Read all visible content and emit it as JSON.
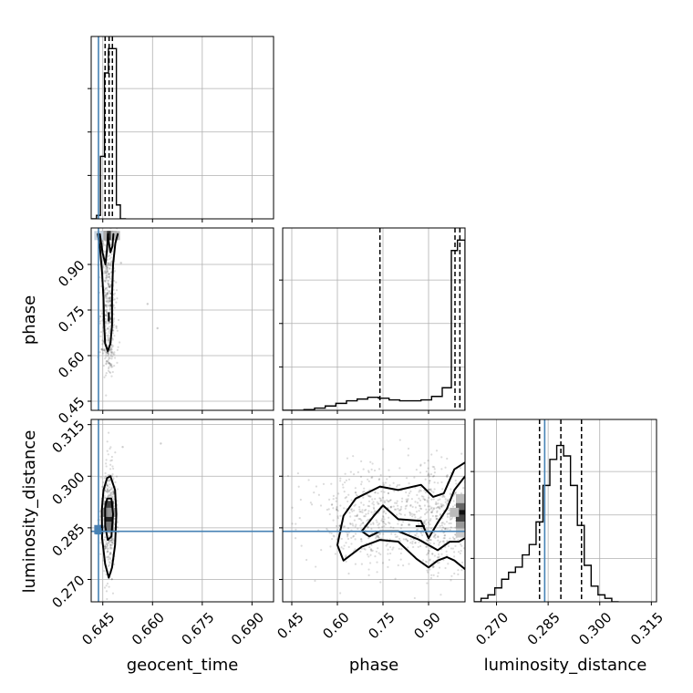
{
  "chart_data": {
    "type": "corner",
    "parameters": [
      "geocent_time",
      "phase",
      "luminosity_distance"
    ],
    "truth": {
      "geocent_time": 0.6437,
      "phase": null,
      "luminosity_distance": 0.284
    },
    "colors": {
      "truth": "#4682b4",
      "hist": "#000000",
      "grid": "#b0b0b0"
    },
    "axes": {
      "geocent_time": {
        "range": [
          0.6415,
          0.6965
        ],
        "ticks": [
          0.645,
          0.66,
          0.675,
          0.69
        ],
        "tick_labels": [
          "0.645",
          "0.660",
          "0.675",
          "0.690"
        ],
        "label": "geocent_time"
      },
      "phase": {
        "range": [
          0.42,
          1.02
        ],
        "ticks": [
          0.45,
          0.6,
          0.75,
          0.9
        ],
        "tick_labels": [
          "0.45",
          "0.60",
          "0.75",
          "0.90"
        ],
        "label": "phase"
      },
      "luminosity_distance": {
        "range": [
          0.2635,
          0.3165
        ],
        "ticks": [
          0.27,
          0.285,
          0.3,
          0.315
        ],
        "tick_labels": [
          "0.270",
          "0.285",
          "0.300",
          "0.315"
        ],
        "label": "luminosity_distance"
      }
    },
    "histograms": {
      "geocent_time": {
        "bin_edges": [
          0.6415,
          0.6431,
          0.6443,
          0.6455,
          0.6467,
          0.6479,
          0.6491,
          0.6503,
          0.652
        ],
        "counts": [
          0.0,
          0.02,
          0.36,
          0.84,
          0.98,
          0.98,
          0.08,
          0.0
        ],
        "quantiles": [
          0.6457,
          0.6469,
          0.6479
        ]
      },
      "phase": {
        "bin_edges": [
          0.42,
          0.455,
          0.49,
          0.525,
          0.56,
          0.595,
          0.63,
          0.665,
          0.7,
          0.735,
          0.77,
          0.805,
          0.84,
          0.875,
          0.91,
          0.945,
          0.975,
          0.995,
          1.02
        ],
        "counts": [
          0.0,
          0.0,
          0.004,
          0.013,
          0.025,
          0.04,
          0.055,
          0.065,
          0.075,
          0.07,
          0.06,
          0.055,
          0.055,
          0.06,
          0.08,
          0.13,
          0.92,
          0.98
        ],
        "quantiles": [
          0.74,
          0.987,
          1.003
        ]
      },
      "luminosity_distance": {
        "bin_edges": [
          0.2635,
          0.2655,
          0.2675,
          0.2695,
          0.2715,
          0.2735,
          0.2755,
          0.2775,
          0.2795,
          0.2815,
          0.2835,
          0.2855,
          0.2875,
          0.2895,
          0.2915,
          0.2935,
          0.2955,
          0.2975,
          0.2995,
          0.3015,
          0.3035,
          0.3055
        ],
        "counts": [
          0.0,
          0.02,
          0.04,
          0.08,
          0.13,
          0.17,
          0.2,
          0.27,
          0.33,
          0.46,
          0.67,
          0.82,
          0.9,
          0.84,
          0.67,
          0.44,
          0.21,
          0.09,
          0.04,
          0.02,
          0.0
        ],
        "quantiles": [
          0.2825,
          0.2887,
          0.2947
        ]
      }
    },
    "contours": {
      "phase_vs_geocent_time": [
        [
          [
            0.6435,
            1.0
          ],
          [
            0.6442,
            0.95
          ],
          [
            0.6448,
            0.87
          ],
          [
            0.6452,
            0.79
          ],
          [
            0.6454,
            0.7
          ],
          [
            0.6457,
            0.64
          ],
          [
            0.6465,
            0.615
          ],
          [
            0.6473,
            0.64
          ],
          [
            0.6478,
            0.7
          ],
          [
            0.6478,
            0.8
          ],
          [
            0.6481,
            0.9
          ],
          [
            0.6488,
            0.97
          ],
          [
            0.6495,
            1.0
          ]
        ],
        [
          [
            0.6441,
            1.0
          ],
          [
            0.6449,
            0.94
          ],
          [
            0.6458,
            0.9
          ],
          [
            0.6462,
            0.94
          ],
          [
            0.6466,
            1.0
          ]
        ],
        [
          [
            0.6466,
            0.99
          ],
          [
            0.6473,
            0.94
          ],
          [
            0.6479,
            0.96
          ],
          [
            0.6482,
            1.0
          ]
        ],
        [
          [
            0.6468,
            0.715
          ],
          [
            0.6468,
            0.74
          ]
        ]
      ],
      "luminosity_distance_vs_geocent_time": [
        [
          [
            0.6463,
            0.2995
          ],
          [
            0.6473,
            0.3
          ],
          [
            0.6487,
            0.296
          ],
          [
            0.6491,
            0.289
          ],
          [
            0.6487,
            0.28
          ],
          [
            0.6478,
            0.2735
          ],
          [
            0.6468,
            0.2705
          ],
          [
            0.6457,
            0.2745
          ],
          [
            0.6448,
            0.282
          ],
          [
            0.6447,
            0.29
          ],
          [
            0.6452,
            0.296
          ],
          [
            0.6463,
            0.2995
          ]
        ],
        [
          [
            0.6463,
            0.2935
          ],
          [
            0.6476,
            0.2935
          ],
          [
            0.6481,
            0.289
          ],
          [
            0.6476,
            0.2825
          ],
          [
            0.6465,
            0.2815
          ],
          [
            0.6457,
            0.2855
          ],
          [
            0.6457,
            0.291
          ],
          [
            0.6463,
            0.2935
          ]
        ]
      ],
      "luminosity_distance_vs_phase": [
        [
          [
            1.02,
            0.304
          ],
          [
            0.985,
            0.302
          ],
          [
            0.95,
            0.295
          ],
          [
            0.915,
            0.294
          ],
          [
            0.875,
            0.2975
          ],
          [
            0.8,
            0.296
          ],
          [
            0.74,
            0.297
          ],
          [
            0.66,
            0.2935
          ],
          [
            0.62,
            0.2885
          ],
          [
            0.6,
            0.28
          ],
          [
            0.62,
            0.2755
          ],
          [
            0.68,
            0.2795
          ],
          [
            0.74,
            0.2815
          ],
          [
            0.8,
            0.281
          ],
          [
            0.86,
            0.276
          ],
          [
            0.9,
            0.2735
          ],
          [
            0.93,
            0.2755
          ],
          [
            0.96,
            0.2765
          ],
          [
            0.985,
            0.2755
          ],
          [
            1.02,
            0.273
          ]
        ],
        [
          [
            1.02,
            0.3
          ],
          [
            0.985,
            0.296
          ],
          [
            0.96,
            0.2905
          ],
          [
            0.93,
            0.2865
          ],
          [
            0.9,
            0.282
          ],
          [
            0.875,
            0.287
          ],
          [
            0.8,
            0.2875
          ],
          [
            0.75,
            0.2915
          ],
          [
            0.72,
            0.2885
          ],
          [
            0.68,
            0.284
          ],
          [
            0.705,
            0.2825
          ],
          [
            0.74,
            0.284
          ],
          [
            0.8,
            0.284
          ],
          [
            0.87,
            0.2815
          ],
          [
            0.93,
            0.2785
          ],
          [
            0.97,
            0.281
          ],
          [
            1.0,
            0.281
          ],
          [
            1.02,
            0.282
          ]
        ],
        [
          [
            0.86,
            0.2855
          ],
          [
            0.885,
            0.2855
          ]
        ]
      ]
    },
    "density_cells": {
      "phase_vs_geocent_time": [
        [
          0.6468,
          0.995,
          "#000000"
        ],
        [
          0.6458,
          0.995,
          "#555555"
        ],
        [
          0.6478,
          0.995,
          "#333333"
        ],
        [
          0.6448,
          0.995,
          "#aaaaaa"
        ],
        [
          0.6488,
          0.995,
          "#bbbbbb"
        ],
        [
          0.6438,
          0.995,
          "#c8d4e0"
        ]
      ],
      "luminosity_distance_vs_geocent_time": [
        [
          0.6469,
          0.2895,
          "#111111"
        ],
        [
          0.6469,
          0.2875,
          "#222222"
        ],
        [
          0.6469,
          0.2915,
          "#444444"
        ],
        [
          0.6469,
          0.2855,
          "#777777"
        ],
        [
          0.6459,
          0.2895,
          "#888888"
        ],
        [
          0.6479,
          0.2895,
          "#999999"
        ],
        [
          0.6438,
          0.2845,
          "#4d7fb0"
        ]
      ],
      "luminosity_distance_vs_phase": [
        [
          1.005,
          0.2895,
          "#111111"
        ],
        [
          1.005,
          0.2875,
          "#444444"
        ],
        [
          1.005,
          0.2915,
          "#666666"
        ],
        [
          1.005,
          0.2855,
          "#999999"
        ],
        [
          0.985,
          0.2895,
          "#bbbbbb"
        ],
        [
          1.005,
          0.2935,
          "#bbbbbb"
        ],
        [
          1.005,
          0.2835,
          "#cccccc"
        ]
      ]
    },
    "scatter_clusters": {
      "phase_vs_geocent_time": [
        {
          "cx": 0.6467,
          "cy": 0.8,
          "sx": 0.0011,
          "sy": 0.11,
          "n": 380
        },
        {
          "cx": 0.6467,
          "cy": 0.62,
          "sx": 0.0012,
          "sy": 0.035,
          "n": 90
        }
      ],
      "luminosity_distance_vs_geocent_time": [
        {
          "cx": 0.6468,
          "cy": 0.288,
          "sx": 0.0011,
          "sy": 0.008,
          "n": 420
        }
      ],
      "luminosity_distance_vs_phase": [
        {
          "cx": 0.94,
          "cy": 0.288,
          "sx": 0.06,
          "sy": 0.008,
          "n": 420
        },
        {
          "cx": 0.72,
          "cy": 0.288,
          "sx": 0.1,
          "sy": 0.0075,
          "n": 480
        }
      ]
    },
    "outliers": {
      "phase_vs_geocent_time": [
        [
          0.6505,
          0.905
        ],
        [
          0.6585,
          0.77
        ],
        [
          0.6615,
          0.69
        ]
      ],
      "luminosity_distance_vs_geocent_time": [
        [
          0.6625,
          0.3095
        ],
        [
          0.651,
          0.3085
        ]
      ]
    },
    "marginal_ylim": [
      0,
      1.05
    ],
    "marginal_yticks": [
      0.25,
      0.5,
      0.75
    ]
  }
}
